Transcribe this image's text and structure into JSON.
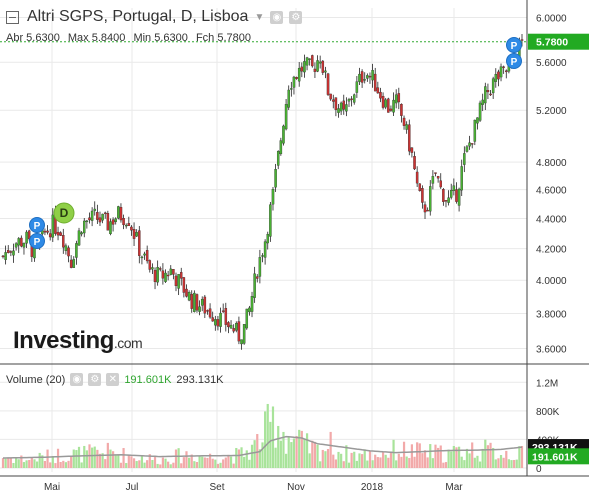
{
  "header": {
    "title": "Altri SGPS, Portugal, D, Lisboa",
    "ohlc": {
      "open": "Abr 5.6300",
      "high": "Max 5.8400",
      "low": "Min 5.6300",
      "close": "Fch 5.7800"
    }
  },
  "volume_header": {
    "label": "Volume (20)",
    "value1": "191.601K",
    "value2": "293.131K"
  },
  "logo": {
    "text": "Investing",
    "suffix": ".com"
  },
  "colors": {
    "up": "#4ab034",
    "down": "#c93333",
    "vol_up": "#a8e39a",
    "vol_down": "#f2a9a9",
    "ma": "#999999",
    "grid": "#e9e9e9",
    "last_line": "#33aa33",
    "label_green": "#22aa22",
    "label_black": "#111111",
    "marker": "#2e8ae6",
    "div_marker": "#8fcf47"
  },
  "chart_data": {
    "type": "candlestick",
    "title": "Altri SGPS, Portugal, D, Lisboa",
    "price_axis": {
      "ticks": [
        "6.0000",
        "5.6000",
        "5.2000",
        "4.8000",
        "4.6000",
        "4.4000",
        "4.2000",
        "4.0000",
        "3.8000",
        "3.6000"
      ]
    },
    "volume_axis": {
      "ticks": [
        "1.2M",
        "800K",
        "400K",
        "0"
      ]
    },
    "x_axis": {
      "ticks": [
        "Mai",
        "Jul",
        "Set",
        "Nov",
        "2018",
        "Mar"
      ]
    },
    "last_price": {
      "value": 5.78,
      "label": "5.7800"
    },
    "volume_labels": {
      "ma": "293.131K",
      "last": "191.601K"
    },
    "markers": [
      {
        "text": "P",
        "date": "Abr"
      },
      {
        "text": "P",
        "date": "Abr"
      },
      {
        "text": "D",
        "date": "Mai"
      },
      {
        "text": "P",
        "date": "Mar"
      },
      {
        "text": "P",
        "date": "Mar"
      }
    ],
    "price_path": [
      [
        0,
        4.15
      ],
      [
        2,
        4.2
      ],
      [
        5,
        4.24
      ],
      [
        9,
        4.26
      ],
      [
        12,
        4.17
      ],
      [
        15,
        4.28
      ],
      [
        19,
        4.36
      ],
      [
        22,
        4.32
      ],
      [
        26,
        4.12
      ],
      [
        30,
        4.36
      ],
      [
        35,
        4.41
      ],
      [
        40,
        4.36
      ],
      [
        44,
        4.43
      ],
      [
        48,
        4.4
      ],
      [
        52,
        4.2
      ],
      [
        56,
        4.06
      ],
      [
        60,
        4.02
      ],
      [
        64,
        4.06
      ],
      [
        68,
        3.97
      ],
      [
        72,
        3.88
      ],
      [
        76,
        3.84
      ],
      [
        80,
        3.8
      ],
      [
        84,
        3.76
      ],
      [
        88,
        3.71
      ],
      [
        90,
        3.67
      ],
      [
        92,
        3.72
      ],
      [
        94,
        3.82
      ],
      [
        97,
        4.07
      ],
      [
        100,
        4.26
      ],
      [
        103,
        4.56
      ],
      [
        106,
        4.98
      ],
      [
        109,
        5.42
      ],
      [
        112,
        5.5
      ],
      [
        115,
        5.57
      ],
      [
        118,
        5.54
      ],
      [
        121,
        5.66
      ],
      [
        124,
        5.36
      ],
      [
        127,
        5.26
      ],
      [
        130,
        5.16
      ],
      [
        134,
        5.36
      ],
      [
        138,
        5.52
      ],
      [
        141,
        5.46
      ],
      [
        144,
        5.33
      ],
      [
        147,
        5.22
      ],
      [
        150,
        5.26
      ],
      [
        153,
        5.1
      ],
      [
        156,
        4.85
      ],
      [
        158,
        4.62
      ],
      [
        160,
        4.46
      ],
      [
        162,
        4.5
      ],
      [
        165,
        4.72
      ],
      [
        167,
        4.6
      ],
      [
        170,
        4.52
      ],
      [
        173,
        4.58
      ],
      [
        176,
        4.82
      ],
      [
        180,
        5.06
      ],
      [
        184,
        5.32
      ],
      [
        188,
        5.46
      ],
      [
        192,
        5.52
      ],
      [
        195,
        5.6
      ],
      [
        198,
        5.78
      ]
    ],
    "volume_path": [
      [
        0,
        150
      ],
      [
        10,
        120
      ],
      [
        20,
        180
      ],
      [
        30,
        200
      ],
      [
        40,
        220
      ],
      [
        50,
        160
      ],
      [
        60,
        120
      ],
      [
        70,
        190
      ],
      [
        80,
        150
      ],
      [
        90,
        180
      ],
      [
        95,
        260
      ],
      [
        100,
        500
      ],
      [
        104,
        700
      ],
      [
        108,
        450
      ],
      [
        112,
        380
      ],
      [
        116,
        300
      ],
      [
        120,
        250
      ],
      [
        125,
        320
      ],
      [
        130,
        200
      ],
      [
        140,
        180
      ],
      [
        150,
        250
      ],
      [
        160,
        220
      ],
      [
        170,
        200
      ],
      [
        180,
        260
      ],
      [
        190,
        220
      ],
      [
        198,
        191.6
      ]
    ],
    "ma_path": [
      [
        0,
        140
      ],
      [
        15,
        150
      ],
      [
        30,
        170
      ],
      [
        45,
        185
      ],
      [
        60,
        160
      ],
      [
        75,
        170
      ],
      [
        90,
        175
      ],
      [
        98,
        230
      ],
      [
        102,
        380
      ],
      [
        108,
        440
      ],
      [
        114,
        420
      ],
      [
        120,
        340
      ],
      [
        130,
        290
      ],
      [
        140,
        240
      ],
      [
        150,
        215
      ],
      [
        160,
        230
      ],
      [
        170,
        245
      ],
      [
        180,
        250
      ],
      [
        190,
        260
      ],
      [
        198,
        293.1
      ]
    ]
  }
}
